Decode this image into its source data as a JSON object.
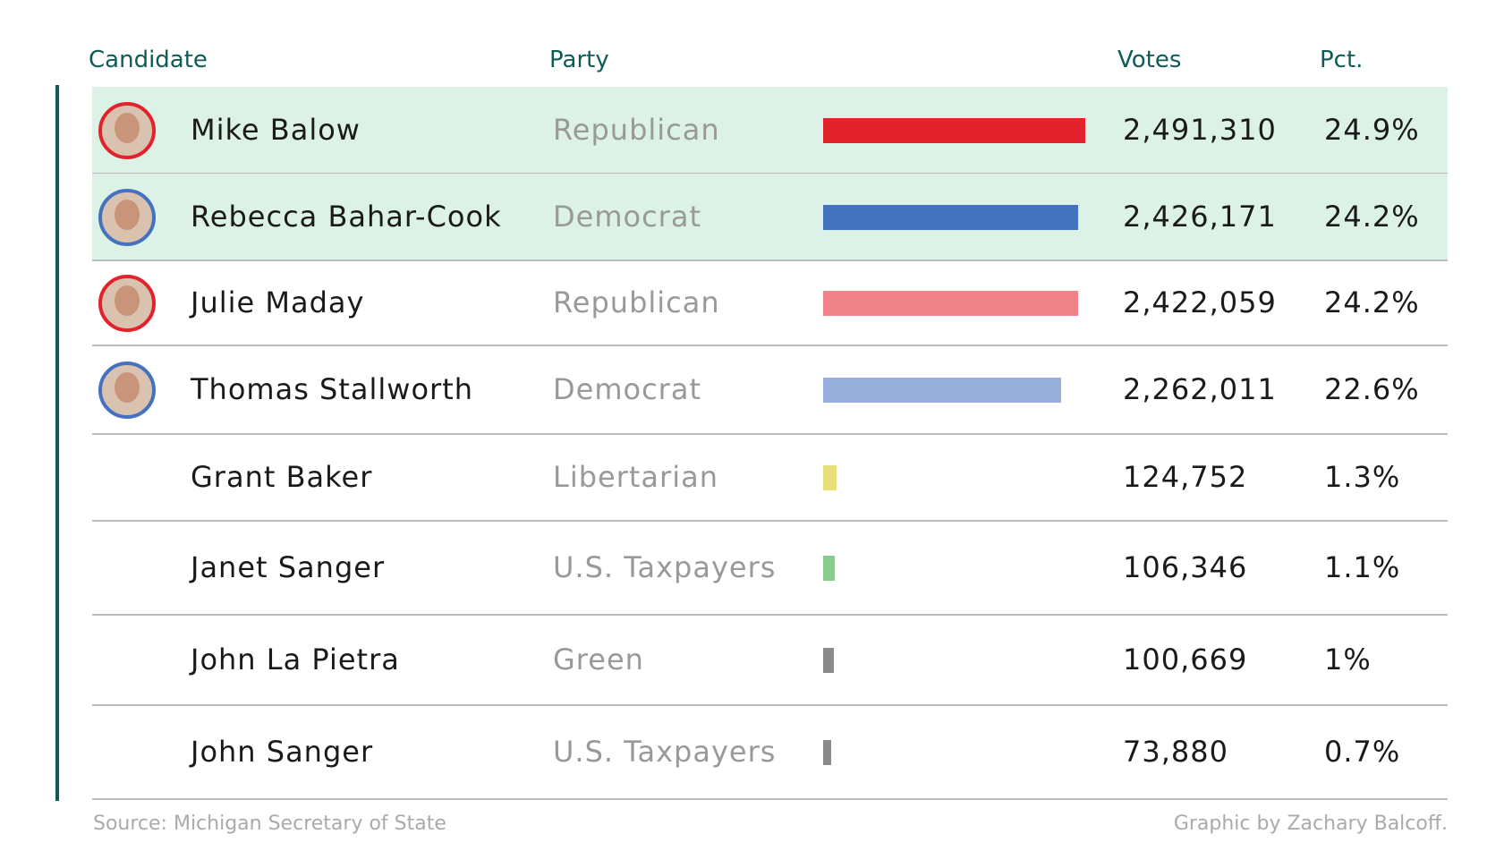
{
  "header": {
    "candidate": "Candidate",
    "party": "Party",
    "votes": "Votes",
    "pct": "Pct."
  },
  "table": {
    "rows": [
      {
        "candidate": "Mike Balow",
        "party": "Republican",
        "votes": {
          "value": 2491310,
          "label": "2,491,310"
        },
        "pct": "24.9%",
        "color": "#e3232b",
        "ring": "#e3232b",
        "highlight": true
      },
      {
        "candidate": "Rebecca Bahar-Cook",
        "party": "Democrat",
        "votes": {
          "value": 2426171,
          "label": "2,426,171"
        },
        "pct": "24.2%",
        "color": "#4472be",
        "ring": "#4472be",
        "highlight": true
      },
      {
        "candidate": "Julie Maday",
        "party": "Republican",
        "votes": {
          "value": 2422059,
          "label": "2,422,059"
        },
        "pct": "24.2%",
        "color": "#f08387",
        "ring": "#e3232b",
        "highlight": false
      },
      {
        "candidate": "Thomas Stallworth",
        "party": "Democrat",
        "votes": {
          "value": 2262011,
          "label": "2,262,011"
        },
        "pct": "22.6%",
        "color": "#97b0db",
        "ring": "#4472be",
        "highlight": false
      },
      {
        "candidate": "Grant Baker",
        "party": "Libertarian",
        "votes": {
          "value": 124752,
          "label": "124,752"
        },
        "pct": "1.3%",
        "color": "#e8e07a",
        "highlight": false
      },
      {
        "candidate": "Janet Sanger",
        "party": "U.S. Taxpayers",
        "votes": {
          "value": 106346,
          "label": "106,346"
        },
        "pct": "1.1%",
        "color": "#88cc90",
        "highlight": false
      },
      {
        "candidate": "John La Pietra",
        "party": "Green",
        "votes": {
          "value": 100669,
          "label": "100,669"
        },
        "pct": "1%",
        "color": "#8a8a8a",
        "highlight": false
      },
      {
        "candidate": "John Sanger",
        "party": "U.S. Taxpayers",
        "votes": {
          "value": 73880,
          "label": "73,880"
        },
        "pct": "0.7%",
        "color": "#8a8a8a",
        "highlight": false
      }
    ]
  },
  "footer": {
    "source": "Source: Michigan Secretary of State",
    "credit": "Graphic by Zachary Balcoff."
  }
}
